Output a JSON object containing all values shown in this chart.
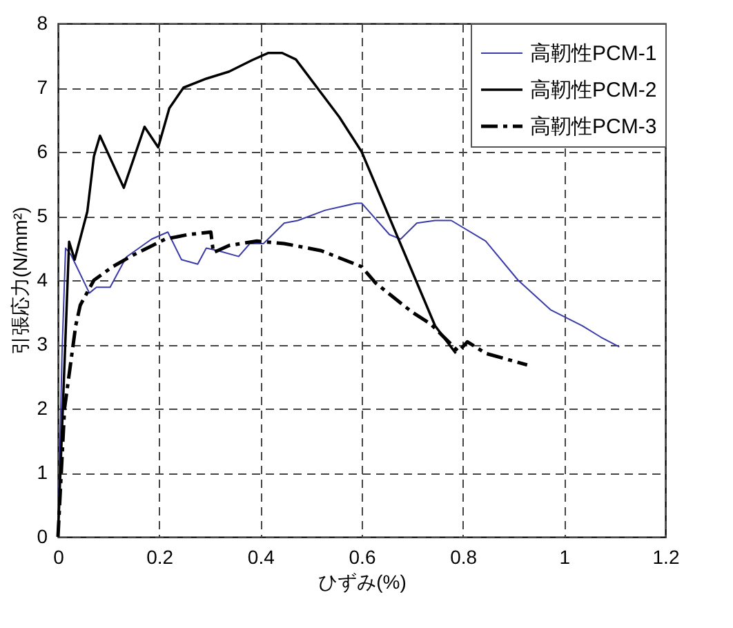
{
  "chart_data": {
    "type": "line",
    "xlabel": "ひずみ(%)",
    "ylabel": "引張応力(N/mm²)",
    "xlim": [
      0,
      1.2
    ],
    "xticks": [
      0,
      0.2,
      0.4,
      0.6,
      0.8,
      1,
      1.2
    ],
    "ylim": [
      0,
      8
    ],
    "yticks": [
      0,
      1,
      2,
      3,
      4,
      5,
      6,
      7,
      8
    ],
    "grid": true,
    "legend": "top right",
    "marker": "none",
    "series": [
      {
        "name": "高靭性PCM-1",
        "color": "#3a3aa8",
        "line_style": "solid",
        "x": [
          0,
          0.008,
          0.015,
          0.026,
          0.062,
          0.076,
          0.103,
          0.135,
          0.185,
          0.217,
          0.244,
          0.276,
          0.293,
          0.316,
          0.357,
          0.379,
          0.406,
          0.447,
          0.474,
          0.528,
          0.59,
          0.6,
          0.655,
          0.677,
          0.709,
          0.745,
          0.777,
          0.845,
          0.909,
          0.973,
          1.036,
          1.073,
          1.109
        ],
        "values": [
          0,
          2.86,
          4.5,
          4.39,
          3.8,
          3.89,
          3.89,
          4.36,
          4.64,
          4.75,
          4.32,
          4.25,
          4.5,
          4.46,
          4.37,
          4.57,
          4.57,
          4.89,
          4.93,
          5.09,
          5.2,
          5.2,
          4.71,
          4.64,
          4.89,
          4.93,
          4.93,
          4.61,
          4.0,
          3.54,
          3.29,
          3.11,
          2.96
        ]
      },
      {
        "name": "高靭性PCM-2",
        "color": "#000000",
        "line_style": "solid",
        "x": [
          0,
          0.022,
          0.033,
          0.058,
          0.071,
          0.083,
          0.13,
          0.171,
          0.198,
          0.22,
          0.248,
          0.293,
          0.338,
          0.384,
          0.415,
          0.443,
          0.47,
          0.556,
          0.6,
          0.745,
          0.786
        ],
        "values": [
          0,
          4.6,
          4.32,
          5.07,
          5.93,
          6.25,
          5.44,
          6.39,
          6.07,
          6.68,
          7.0,
          7.14,
          7.25,
          7.43,
          7.54,
          7.54,
          7.44,
          6.54,
          6.0,
          3.29,
          2.86
        ]
      },
      {
        "name": "高靭性PCM-3",
        "color": "#000000",
        "line_style": "dashed",
        "x": [
          0,
          0.013,
          0.035,
          0.044,
          0.071,
          0.108,
          0.148,
          0.212,
          0.257,
          0.302,
          0.307,
          0.338,
          0.393,
          0.447,
          0.52,
          0.6,
          0.627,
          0.7,
          0.736,
          0.791,
          0.809,
          0.845,
          0.927
        ],
        "values": [
          0,
          2.0,
          3.29,
          3.61,
          4.0,
          4.21,
          4.39,
          4.64,
          4.71,
          4.75,
          4.43,
          4.54,
          4.61,
          4.57,
          4.46,
          4.21,
          3.96,
          3.5,
          3.32,
          2.89,
          3.04,
          2.86,
          2.68
        ]
      }
    ]
  }
}
